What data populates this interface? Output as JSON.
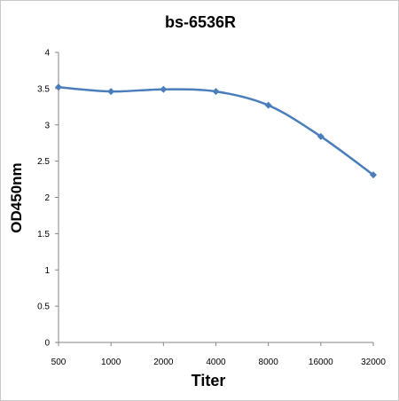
{
  "chart_data": {
    "type": "line",
    "title": "bs-6536R",
    "xlabel": "Titer",
    "ylabel": "OD450nm",
    "categories": [
      "500",
      "1000",
      "2000",
      "4000",
      "8000",
      "16000",
      "32000"
    ],
    "series": [
      {
        "values": [
          3.52,
          3.46,
          3.49,
          3.46,
          3.27,
          2.84,
          2.31
        ]
      }
    ],
    "ylim": [
      0,
      4
    ],
    "yticks": [
      "0",
      "0.5",
      "1",
      "1.5",
      "2",
      "2.5",
      "3",
      "3.5",
      "4"
    ],
    "grid": false,
    "legend": "none",
    "line_color": "#4a7ebb"
  }
}
